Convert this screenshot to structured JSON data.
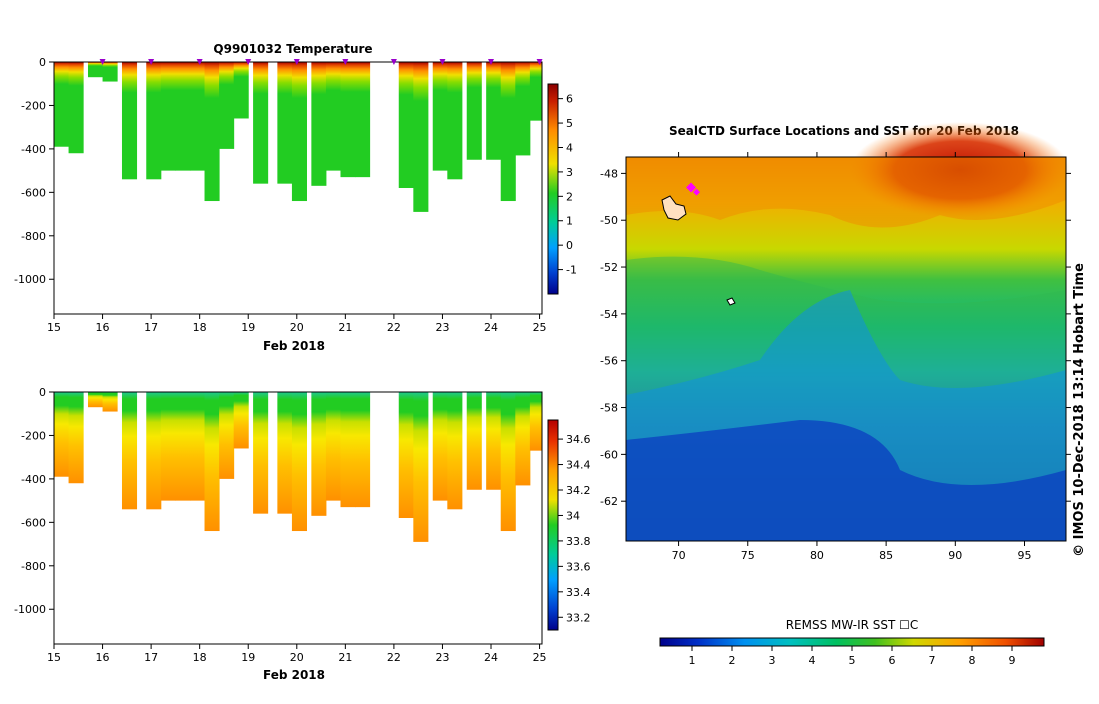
{
  "chart_data": [
    {
      "type": "heatmap",
      "title": "Q9901032  Temperature",
      "xlabel": "Feb 2018",
      "ylabel": "",
      "x_ticks": [
        "15",
        "16",
        "17",
        "18",
        "19",
        "20",
        "21",
        "22",
        "23",
        "24",
        "25"
      ],
      "y_ticks": [
        "0",
        "-200",
        "-400",
        "-600",
        "-800",
        "-1000"
      ],
      "xlim": [
        15,
        25.05
      ],
      "ylim": [
        -1160,
        0
      ],
      "colorbar": {
        "ticks": [
          "-1",
          "0",
          "1",
          "2",
          "3",
          "4",
          "5",
          "6"
        ],
        "range": [
          -2,
          6.6
        ]
      },
      "profiles": [
        {
          "day": 15.0,
          "depth": -390
        },
        {
          "day": 15.3,
          "depth": -420
        },
        {
          "day": 15.7,
          "depth": -70
        },
        {
          "day": 16.0,
          "depth": -90
        },
        {
          "day": 16.4,
          "depth": -540
        },
        {
          "day": 16.9,
          "depth": -540
        },
        {
          "day": 17.2,
          "depth": -500
        },
        {
          "day": 17.5,
          "depth": -500
        },
        {
          "day": 17.8,
          "depth": -500
        },
        {
          "day": 18.1,
          "depth": -640
        },
        {
          "day": 18.4,
          "depth": -400
        },
        {
          "day": 18.7,
          "depth": -260
        },
        {
          "day": 19.1,
          "depth": -560
        },
        {
          "day": 19.6,
          "depth": -560
        },
        {
          "day": 19.9,
          "depth": -640
        },
        {
          "day": 20.3,
          "depth": -570
        },
        {
          "day": 20.6,
          "depth": -500
        },
        {
          "day": 20.9,
          "depth": -530
        },
        {
          "day": 21.2,
          "depth": -530
        },
        {
          "day": 22.1,
          "depth": -580
        },
        {
          "day": 22.4,
          "depth": -690
        },
        {
          "day": 22.8,
          "depth": -500
        },
        {
          "day": 23.1,
          "depth": -540
        },
        {
          "day": 23.5,
          "depth": -450
        },
        {
          "day": 23.9,
          "depth": -450
        },
        {
          "day": 24.2,
          "depth": -640
        },
        {
          "day": 24.5,
          "depth": -430
        },
        {
          "day": 24.8,
          "depth": -270
        }
      ],
      "surface_markers": [
        16,
        17,
        18,
        19,
        20,
        21,
        22,
        23,
        24,
        25
      ]
    },
    {
      "type": "heatmap",
      "title": "",
      "xlabel": "Feb 2018",
      "ylabel": "",
      "x_ticks": [
        "15",
        "16",
        "17",
        "18",
        "19",
        "20",
        "21",
        "22",
        "23",
        "24",
        "25"
      ],
      "y_ticks": [
        "0",
        "-200",
        "-400",
        "-600",
        "-800",
        "-1000"
      ],
      "xlim": [
        15,
        25.05
      ],
      "ylim": [
        -1160,
        0
      ],
      "colorbar": {
        "ticks": [
          "33.2",
          "33.4",
          "33.6",
          "33.8",
          "34",
          "34.2",
          "34.4",
          "34.6"
        ],
        "range": [
          33.1,
          34.75
        ]
      }
    },
    {
      "type": "heatmap",
      "title": "SealCTD Surface Locations and SST for 20 Feb 2018",
      "xlabel": "",
      "ylabel": "",
      "x_ticks": [
        "70",
        "75",
        "80",
        "85",
        "90",
        "95"
      ],
      "y_ticks": [
        "-48",
        "-50",
        "-52",
        "-54",
        "-56",
        "-58",
        "-60",
        "-62"
      ],
      "xlim": [
        66.2,
        98
      ],
      "ylim": [
        -63.7,
        -47.3
      ],
      "seal_locations": [
        {
          "lon": 70.9,
          "lat": -48.6
        },
        {
          "lon": 71.3,
          "lat": -48.8
        }
      ],
      "colorbar": {
        "label": "REMSS MW-IR SST ☐C",
        "ticks": [
          "1",
          "2",
          "3",
          "4",
          "5",
          "6",
          "7",
          "8",
          "9"
        ],
        "range": [
          0.2,
          9.8
        ]
      }
    }
  ],
  "credit": "©  IMOS 10-Dec-2018 13:14 Hobart Time",
  "colors": {
    "seal_marker": "#ff00ff",
    "profile_marker": "#9900cc"
  }
}
